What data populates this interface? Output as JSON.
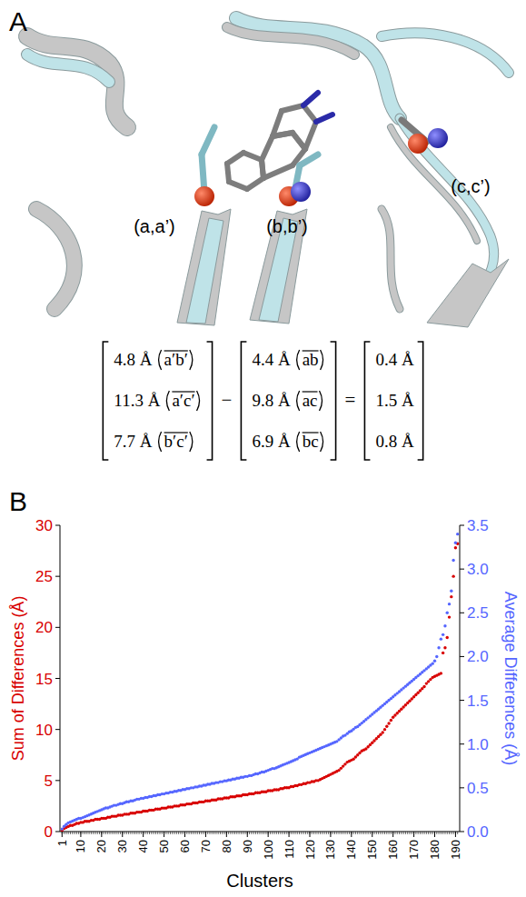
{
  "panel_a": {
    "letter": "A",
    "labels": [
      "(a,a’)",
      "(b,b’)",
      "(c,c’)"
    ],
    "equation": {
      "minuend": [
        {
          "distance": "4.8 Å",
          "pair": "a′b′"
        },
        {
          "distance": "11.3 Å",
          "pair": "a′c′"
        },
        {
          "distance": "7.7 Å",
          "pair": "b′c′"
        }
      ],
      "subtrahend": [
        {
          "distance": "4.4 Å",
          "pair": "ab"
        },
        {
          "distance": "9.8 Å",
          "pair": "ac"
        },
        {
          "distance": "6.9 Å",
          "pair": "bc"
        }
      ],
      "difference": [
        "0.4 Å",
        "1.5 Å",
        "0.8 Å"
      ],
      "operators": [
        "−",
        "="
      ]
    }
  },
  "chart_data": {
    "type": "scatter",
    "panel_letter": "B",
    "x_label": "Clusters",
    "y_label": "Sum of Differences (Å)",
    "y2_label": "Average Differences (Å)",
    "x": [
      1,
      2,
      3,
      4,
      5,
      6,
      7,
      8,
      9,
      10,
      11,
      12,
      13,
      14,
      15,
      16,
      17,
      18,
      19,
      20,
      21,
      22,
      23,
      24,
      25,
      26,
      27,
      28,
      29,
      30,
      31,
      32,
      33,
      34,
      35,
      36,
      37,
      38,
      39,
      40,
      41,
      42,
      43,
      44,
      45,
      46,
      47,
      48,
      49,
      50,
      51,
      52,
      53,
      54,
      55,
      56,
      57,
      58,
      59,
      60,
      61,
      62,
      63,
      64,
      65,
      66,
      67,
      68,
      69,
      70,
      71,
      72,
      73,
      74,
      75,
      76,
      77,
      78,
      79,
      80,
      81,
      82,
      83,
      84,
      85,
      86,
      87,
      88,
      89,
      90,
      91,
      92,
      93,
      94,
      95,
      96,
      97,
      98,
      99,
      100,
      101,
      102,
      103,
      104,
      105,
      106,
      107,
      108,
      109,
      110,
      111,
      112,
      113,
      114,
      115,
      116,
      117,
      118,
      119,
      120,
      121,
      122,
      123,
      124,
      125,
      126,
      127,
      128,
      129,
      130,
      131,
      132,
      133,
      134,
      135,
      136,
      137,
      138,
      139,
      140,
      141,
      142,
      143,
      144,
      145,
      146,
      147,
      148,
      149,
      150,
      151,
      152,
      153,
      154,
      155,
      156,
      157,
      158,
      159,
      160,
      161,
      162,
      163,
      164,
      165,
      166,
      167,
      168,
      169,
      170,
      171,
      172,
      173,
      174,
      175,
      176,
      177,
      178,
      179,
      180,
      181,
      182,
      183,
      184,
      185,
      186,
      187,
      188,
      189,
      190,
      191
    ],
    "xlim": [
      0,
      192
    ],
    "xticks": [
      1,
      10,
      20,
      30,
      40,
      50,
      60,
      70,
      80,
      90,
      100,
      110,
      120,
      130,
      140,
      150,
      160,
      170,
      180,
      190
    ],
    "ylim": [
      0,
      30
    ],
    "yticks": [
      0,
      5,
      10,
      15,
      20,
      25,
      30
    ],
    "y2lim": [
      0,
      3.5
    ],
    "y2ticks": [
      {
        "value": 0,
        "label": "0.0"
      },
      0.5,
      {
        "value": 1,
        "label": "1.0"
      },
      1.5,
      {
        "value": 2,
        "label": "2.0"
      },
      2.5,
      {
        "value": 3,
        "label": "3.0"
      },
      3.5
    ],
    "series": [
      {
        "color": "#d80000",
        "marker": "circle",
        "values": [
          0.1,
          0.3,
          0.4,
          0.5,
          0.6,
          0.6,
          0.7,
          0.8,
          0.8,
          0.9,
          0.9,
          1.0,
          1.0,
          1.0,
          1.1,
          1.1,
          1.2,
          1.2,
          1.2,
          1.3,
          1.3,
          1.3,
          1.4,
          1.4,
          1.5,
          1.5,
          1.5,
          1.6,
          1.6,
          1.6,
          1.7,
          1.7,
          1.7,
          1.8,
          1.8,
          1.8,
          1.9,
          1.9,
          1.9,
          2.0,
          2.0,
          2.0,
          2.1,
          2.1,
          2.1,
          2.2,
          2.2,
          2.2,
          2.3,
          2.3,
          2.3,
          2.4,
          2.4,
          2.4,
          2.5,
          2.5,
          2.5,
          2.6,
          2.6,
          2.6,
          2.7,
          2.7,
          2.7,
          2.8,
          2.8,
          2.8,
          2.9,
          2.9,
          2.9,
          3.0,
          3.0,
          3.0,
          3.1,
          3.1,
          3.1,
          3.2,
          3.2,
          3.2,
          3.3,
          3.3,
          3.3,
          3.4,
          3.4,
          3.4,
          3.5,
          3.5,
          3.5,
          3.6,
          3.6,
          3.6,
          3.7,
          3.7,
          3.7,
          3.8,
          3.8,
          3.8,
          3.9,
          3.9,
          3.9,
          4.0,
          4.0,
          4.0,
          4.1,
          4.1,
          4.1,
          4.2,
          4.2,
          4.3,
          4.3,
          4.3,
          4.4,
          4.4,
          4.5,
          4.5,
          4.6,
          4.6,
          4.7,
          4.7,
          4.8,
          4.8,
          4.9,
          4.9,
          5.0,
          5.0,
          5.1,
          5.2,
          5.3,
          5.4,
          5.5,
          5.6,
          5.7,
          5.8,
          5.9,
          6.0,
          6.2,
          6.4,
          6.6,
          6.8,
          6.9,
          7.0,
          7.1,
          7.3,
          7.5,
          7.7,
          7.9,
          8.0,
          8.1,
          8.3,
          8.5,
          8.7,
          8.9,
          9.1,
          9.3,
          9.5,
          9.7,
          10.0,
          10.3,
          10.6,
          10.9,
          11.2,
          11.4,
          11.6,
          11.8,
          12.0,
          12.2,
          12.4,
          12.6,
          12.8,
          13.0,
          13.2,
          13.4,
          13.6,
          13.8,
          14.0,
          14.2,
          14.5,
          14.7,
          14.9,
          15.1,
          15.2,
          15.3,
          15.4,
          15.5,
          17.5,
          18.0,
          19.0,
          21.0,
          23.0,
          25.0,
          27.8,
          28.2
        ]
      },
      {
        "color": "#5566ff",
        "marker": "circle",
        "axis": "y2",
        "values": [
          0.03,
          0.06,
          0.08,
          0.1,
          0.11,
          0.12,
          0.13,
          0.14,
          0.15,
          0.15,
          0.16,
          0.17,
          0.18,
          0.19,
          0.2,
          0.21,
          0.22,
          0.23,
          0.24,
          0.25,
          0.26,
          0.27,
          0.27,
          0.28,
          0.29,
          0.3,
          0.3,
          0.31,
          0.32,
          0.32,
          0.33,
          0.34,
          0.34,
          0.35,
          0.35,
          0.36,
          0.37,
          0.37,
          0.38,
          0.38,
          0.39,
          0.39,
          0.4,
          0.4,
          0.41,
          0.41,
          0.42,
          0.42,
          0.43,
          0.43,
          0.44,
          0.44,
          0.45,
          0.45,
          0.46,
          0.46,
          0.47,
          0.47,
          0.48,
          0.48,
          0.49,
          0.49,
          0.5,
          0.5,
          0.51,
          0.51,
          0.52,
          0.52,
          0.53,
          0.53,
          0.54,
          0.54,
          0.55,
          0.55,
          0.56,
          0.56,
          0.57,
          0.57,
          0.58,
          0.58,
          0.59,
          0.59,
          0.6,
          0.6,
          0.61,
          0.61,
          0.62,
          0.62,
          0.63,
          0.63,
          0.64,
          0.64,
          0.65,
          0.66,
          0.66,
          0.67,
          0.68,
          0.68,
          0.69,
          0.7,
          0.71,
          0.72,
          0.72,
          0.73,
          0.74,
          0.75,
          0.76,
          0.77,
          0.78,
          0.79,
          0.8,
          0.81,
          0.82,
          0.83,
          0.85,
          0.86,
          0.87,
          0.88,
          0.89,
          0.9,
          0.91,
          0.92,
          0.93,
          0.94,
          0.95,
          0.96,
          0.97,
          0.98,
          0.99,
          1.0,
          1.01,
          1.02,
          1.03,
          1.05,
          1.07,
          1.09,
          1.1,
          1.12,
          1.14,
          1.15,
          1.17,
          1.19,
          1.2,
          1.22,
          1.24,
          1.26,
          1.28,
          1.3,
          1.32,
          1.34,
          1.36,
          1.38,
          1.4,
          1.42,
          1.44,
          1.46,
          1.48,
          1.5,
          1.52,
          1.54,
          1.56,
          1.58,
          1.6,
          1.62,
          1.64,
          1.66,
          1.68,
          1.7,
          1.72,
          1.74,
          1.76,
          1.78,
          1.8,
          1.82,
          1.84,
          1.86,
          1.88,
          1.9,
          1.92,
          1.95,
          2.0,
          2.1,
          2.2,
          2.25,
          2.35,
          2.5,
          2.6,
          2.75,
          3.1,
          3.3,
          3.4
        ]
      }
    ]
  }
}
